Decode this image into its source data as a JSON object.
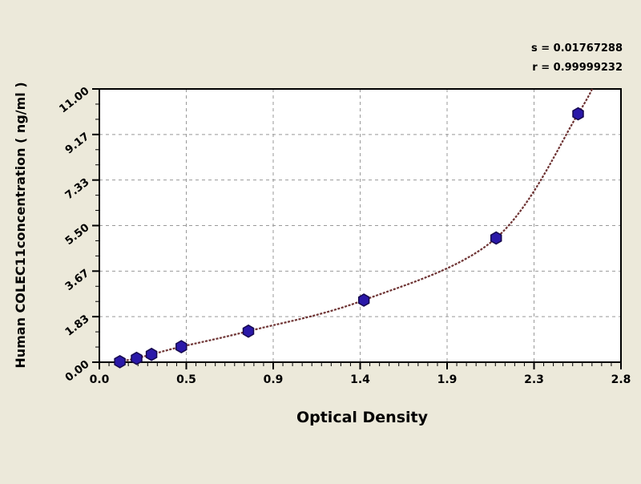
{
  "chart_data": {
    "type": "scatter",
    "title": "",
    "xlabel": "Optical Density",
    "ylabel": "Human COLEC11concentration ( ng/ml )",
    "xlim": [
      0,
      2.8
    ],
    "ylim": [
      0,
      11
    ],
    "grid": "major-dashed",
    "legend": "none",
    "x_ticks": [
      {
        "value": 0,
        "label": "0.0"
      },
      {
        "value": 0.4667,
        "label": "0.5"
      },
      {
        "value": 0.9333,
        "label": "0.9"
      },
      {
        "value": 1.4,
        "label": "1.4"
      },
      {
        "value": 1.8667,
        "label": "1.9"
      },
      {
        "value": 2.3333,
        "label": "2.3"
      },
      {
        "value": 2.8,
        "label": "2.8"
      }
    ],
    "y_ticks": [
      {
        "value": 0,
        "label": "0.00"
      },
      {
        "value": 1.8333,
        "label": "1.83"
      },
      {
        "value": 3.6667,
        "label": "3.67"
      },
      {
        "value": 5.5,
        "label": "5.50"
      },
      {
        "value": 7.3333,
        "label": "7.33"
      },
      {
        "value": 9.1667,
        "label": "9.17"
      },
      {
        "value": 11,
        "label": "11.00"
      }
    ],
    "series": [
      {
        "name": "standard-points",
        "type": "scatter",
        "marker": "hexagon",
        "points": [
          {
            "x": 0.11,
            "y": 0.02
          },
          {
            "x": 0.2,
            "y": 0.156
          },
          {
            "x": 0.28,
            "y": 0.3125
          },
          {
            "x": 0.44,
            "y": 0.625
          },
          {
            "x": 0.8,
            "y": 1.25
          },
          {
            "x": 1.42,
            "y": 2.5
          },
          {
            "x": 2.13,
            "y": 5.0
          },
          {
            "x": 2.57,
            "y": 10.0
          }
        ]
      },
      {
        "name": "fitted-curve",
        "type": "line",
        "style": "beaded-dash"
      }
    ],
    "curve_extension": {
      "start": {
        "x": 0.07,
        "y": -0.1
      },
      "end": {
        "x": 2.68,
        "y": 11.6
      }
    },
    "annotations": {
      "s_label": "s = 0.01767288",
      "r_label": "r = 0.99999232"
    }
  },
  "colors": {
    "page_background": "#ece9da",
    "plot_background": "#ffffff",
    "axis": "#000000",
    "grid": "#999999",
    "curve": "#6e3333",
    "marker_fill": "#2a18a8",
    "marker_stroke": "#15084d",
    "text": "#000000"
  }
}
